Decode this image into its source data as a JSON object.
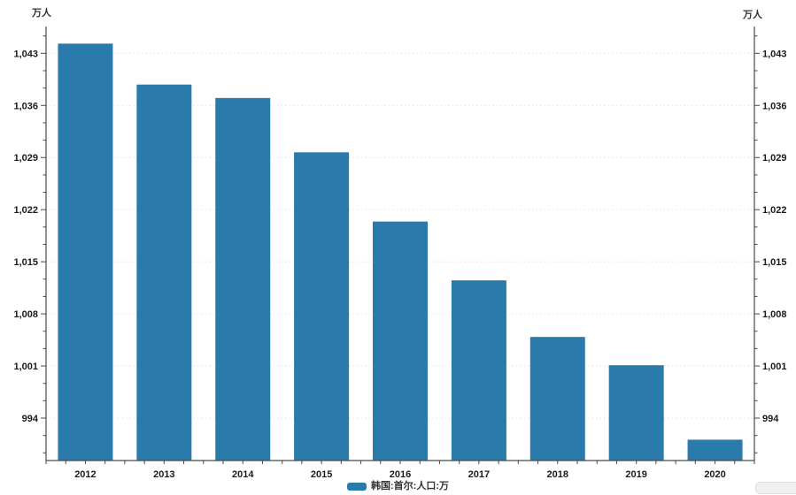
{
  "chart_data": {
    "type": "bar",
    "title": "",
    "unit_left": "万人",
    "unit_right": "万人",
    "categories": [
      "2012",
      "2013",
      "2014",
      "2015",
      "2016",
      "2017",
      "2018",
      "2019",
      "2020"
    ],
    "series": [
      {
        "name": "韩国:首尔:人口:万",
        "color": "#2a7bac",
        "values": [
          1044.3,
          1038.8,
          1037.0,
          1029.7,
          1020.4,
          1012.5,
          1004.9,
          1001.1,
          991.1
        ]
      }
    ],
    "y_axis": {
      "min": 988.3,
      "max": 1046.6,
      "tick_values": [
        994,
        1001,
        1008,
        1015,
        1022,
        1029,
        1036,
        1043
      ],
      "tick_labels": [
        "994",
        "1,001",
        "1,008",
        "1,015",
        "1,022",
        "1,029",
        "1,036",
        "1,043"
      ],
      "major_step": 7,
      "minor_divisions": 3
    },
    "x_axis": {
      "label": ""
    },
    "grid": "horizontal-dotted",
    "legend_position": "bottom-center"
  },
  "legend": {
    "label": "韩国:首尔:人口:万",
    "swatch_color": "#2a7bac"
  },
  "colors": {
    "background": "#ffffff",
    "axis": "#4a4a4a",
    "grid": "#e2e2e2",
    "tick_text": "#1b1b1b",
    "legend_text": "#333333",
    "bar": "#2a7bac"
  }
}
